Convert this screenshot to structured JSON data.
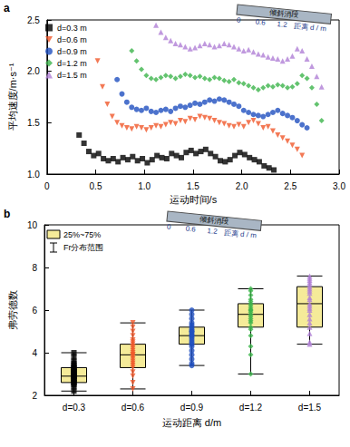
{
  "chart_data": [
    {
      "type": "scatter",
      "panel": "a",
      "x_label": "运动时间/s",
      "y_label": "平均速度/m·s⁻¹",
      "xlim": [
        0,
        3
      ],
      "xticks": [
        0,
        0.5,
        {
          "value": 1,
          "label": "1.0"
        },
        1.5,
        {
          "value": 2,
          "label": "2.0"
        },
        2.5,
        {
          "value": 3,
          "label": "3.0"
        }
      ],
      "ylim": [
        1,
        2.5
      ],
      "yticks": [
        {
          "value": 1,
          "label": "1.0"
        },
        1.5,
        {
          "value": 2,
          "label": "2.0"
        },
        2.5
      ],
      "grid": false,
      "legend": "upper left",
      "inset": {
        "label": "倾斜消段",
        "ticks": [
          0,
          0.6,
          1.2
        ],
        "axis_label": "距离 d / m"
      },
      "series": [
        {
          "name": "d=0.3 m",
          "color": "#000000",
          "marker": "square",
          "x": [
            0.33,
            0.38,
            0.43,
            0.48,
            0.53,
            0.58,
            0.63,
            0.68,
            0.73,
            0.78,
            0.83,
            0.88,
            0.93,
            0.98,
            1.03,
            1.08,
            1.13,
            1.18,
            1.23,
            1.28,
            1.33,
            1.38,
            1.43,
            1.48,
            1.53,
            1.58,
            1.63,
            1.68,
            1.73,
            1.78,
            1.83,
            1.88,
            1.93,
            1.98,
            2.03,
            2.08,
            2.13,
            2.18,
            2.23,
            2.28,
            2.33
          ],
          "values": [
            1.38,
            1.3,
            1.22,
            1.18,
            1.2,
            1.15,
            1.13,
            1.15,
            1.12,
            1.16,
            1.14,
            1.17,
            1.13,
            1.15,
            1.11,
            1.14,
            1.18,
            1.16,
            1.15,
            1.2,
            1.18,
            1.16,
            1.21,
            1.23,
            1.2,
            1.22,
            1.24,
            1.2,
            1.17,
            1.13,
            1.12,
            1.14,
            1.18,
            1.21,
            1.19,
            1.16,
            1.14,
            1.12,
            1.08,
            1.06,
            1.04
          ]
        },
        {
          "name": "d=0.6 m",
          "color": "#f0582a",
          "marker": "triangle_down",
          "x": [
            0.52,
            0.57,
            0.62,
            0.67,
            0.72,
            0.77,
            0.82,
            0.87,
            0.92,
            0.97,
            1.02,
            1.07,
            1.12,
            1.17,
            1.22,
            1.27,
            1.32,
            1.37,
            1.42,
            1.47,
            1.52,
            1.57,
            1.62,
            1.67,
            1.72,
            1.77,
            1.82,
            1.87,
            1.92,
            1.97,
            2.02,
            2.07,
            2.12,
            2.17,
            2.22,
            2.27,
            2.32,
            2.37,
            2.42,
            2.47,
            2.52,
            2.57,
            2.62
          ],
          "values": [
            2.1,
            1.85,
            1.68,
            1.56,
            1.5,
            1.47,
            1.45,
            1.44,
            1.46,
            1.45,
            1.43,
            1.45,
            1.47,
            1.46,
            1.48,
            1.5,
            1.49,
            1.52,
            1.51,
            1.54,
            1.53,
            1.56,
            1.55,
            1.54,
            1.52,
            1.5,
            1.49,
            1.47,
            1.46,
            1.48,
            1.46,
            1.5,
            1.52,
            1.49,
            1.45,
            1.46,
            1.42,
            1.38,
            1.35,
            1.32,
            1.28,
            1.24,
            1.18
          ]
        },
        {
          "name": "d=0.9 m",
          "color": "#1f4fbf",
          "marker": "circle",
          "x": [
            0.72,
            0.77,
            0.82,
            0.87,
            0.92,
            0.97,
            1.02,
            1.07,
            1.12,
            1.17,
            1.22,
            1.27,
            1.32,
            1.37,
            1.42,
            1.47,
            1.52,
            1.57,
            1.62,
            1.67,
            1.72,
            1.77,
            1.82,
            1.87,
            1.92,
            1.97,
            2.02,
            2.07,
            2.12,
            2.17,
            2.22,
            2.27,
            2.32,
            2.37,
            2.42,
            2.47,
            2.52,
            2.57,
            2.62,
            2.67
          ],
          "values": [
            1.92,
            1.78,
            1.7,
            1.65,
            1.63,
            1.62,
            1.64,
            1.61,
            1.6,
            1.62,
            1.63,
            1.61,
            1.64,
            1.66,
            1.65,
            1.67,
            1.69,
            1.68,
            1.7,
            1.72,
            1.71,
            1.73,
            1.72,
            1.7,
            1.68,
            1.66,
            1.62,
            1.6,
            1.58,
            1.57,
            1.56,
            1.58,
            1.6,
            1.62,
            1.59,
            1.57,
            1.55,
            1.52,
            1.48,
            1.45
          ]
        },
        {
          "name": "d=1.2 m",
          "color": "#3cb44b",
          "marker": "diamond",
          "x": [
            0.87,
            0.92,
            0.97,
            1.02,
            1.07,
            1.12,
            1.17,
            1.22,
            1.27,
            1.32,
            1.37,
            1.42,
            1.47,
            1.52,
            1.57,
            1.62,
            1.67,
            1.72,
            1.77,
            1.82,
            1.87,
            1.92,
            1.97,
            2.02,
            2.07,
            2.12,
            2.17,
            2.22,
            2.27,
            2.32,
            2.37,
            2.42,
            2.47,
            2.52,
            2.57,
            2.62,
            2.67,
            2.72,
            2.77,
            2.82
          ],
          "values": [
            2.2,
            2.1,
            2.02,
            1.96,
            1.93,
            1.92,
            1.94,
            1.96,
            1.95,
            1.93,
            1.95,
            1.97,
            1.96,
            1.94,
            1.95,
            1.93,
            1.92,
            1.94,
            1.93,
            1.91,
            1.9,
            1.92,
            1.89,
            1.88,
            1.86,
            1.84,
            1.82,
            1.84,
            1.86,
            1.85,
            1.87,
            1.86,
            1.84,
            1.85,
            1.88,
            1.96,
            1.93,
            1.84,
            1.68,
            1.52
          ]
        },
        {
          "name": "d=1.5 m",
          "color": "#b07fd6",
          "marker": "triangle_up",
          "x": [
            1.12,
            1.17,
            1.22,
            1.27,
            1.32,
            1.37,
            1.42,
            1.47,
            1.52,
            1.57,
            1.62,
            1.67,
            1.72,
            1.77,
            1.82,
            1.87,
            1.92,
            1.97,
            2.02,
            2.07,
            2.12,
            2.17,
            2.22,
            2.27,
            2.32,
            2.37,
            2.42,
            2.47,
            2.52,
            2.57,
            2.62,
            2.67,
            2.72,
            2.77,
            2.82
          ],
          "values": [
            2.45,
            2.38,
            2.33,
            2.3,
            2.27,
            2.26,
            2.24,
            2.22,
            2.23,
            2.25,
            2.27,
            2.26,
            2.24,
            2.25,
            2.27,
            2.26,
            2.24,
            2.22,
            2.2,
            2.21,
            2.19,
            2.17,
            2.16,
            2.14,
            2.13,
            2.12,
            2.1,
            2.12,
            2.15,
            2.22,
            2.2,
            2.12,
            2.05,
            1.95,
            1.85
          ]
        }
      ]
    },
    {
      "type": "box",
      "panel": "b",
      "x_label": "运动距离 d/m",
      "y_label": "弗劳德数",
      "categories": [
        "d=0.3",
        "d=0.6",
        "d=0.9",
        "d=1.2",
        "d=1.5"
      ],
      "ylim": [
        2,
        10
      ],
      "yticks": [
        2,
        4,
        6,
        8,
        10
      ],
      "grid": false,
      "legend": "upper left",
      "color": "#f5eb99",
      "legend_items": [
        "25%~75%",
        "Fr分布范围"
      ],
      "inset": {
        "label": "倾斜消段",
        "ticks": [
          0,
          0.6,
          1.2
        ],
        "axis_label": "距离 d / m"
      },
      "boxes": [
        {
          "low": 2.2,
          "q1": 2.6,
          "median": 2.9,
          "q3": 3.3,
          "high": 4.0,
          "color": "#000000",
          "marker": "square",
          "points": [
            2.2,
            2.4,
            2.5,
            2.6,
            2.6,
            2.7,
            2.7,
            2.8,
            2.8,
            2.9,
            2.9,
            2.9,
            3.0,
            3.0,
            3.1,
            3.1,
            3.2,
            3.2,
            3.3,
            3.3,
            3.4,
            3.5,
            3.6,
            3.8,
            4.0
          ]
        },
        {
          "low": 2.3,
          "q1": 3.3,
          "median": 3.9,
          "q3": 4.4,
          "high": 5.4,
          "color": "#f0582a",
          "marker": "triangle_down",
          "points": [
            2.3,
            2.6,
            2.9,
            3.1,
            3.3,
            3.4,
            3.5,
            3.6,
            3.7,
            3.8,
            3.9,
            3.9,
            4.0,
            4.1,
            4.2,
            4.3,
            4.4,
            4.5,
            4.6,
            4.8,
            5.0,
            5.2,
            5.4
          ]
        },
        {
          "low": 3.4,
          "q1": 4.4,
          "median": 4.8,
          "q3": 5.2,
          "high": 6.0,
          "color": "#1f4fbf",
          "marker": "circle",
          "points": [
            3.4,
            3.5,
            3.7,
            3.9,
            4.1,
            4.3,
            4.4,
            4.5,
            4.6,
            4.7,
            4.8,
            4.8,
            4.9,
            5.0,
            5.0,
            5.1,
            5.2,
            5.3,
            5.4,
            5.6,
            5.8,
            6.0
          ]
        },
        {
          "low": 3.0,
          "q1": 5.2,
          "median": 5.8,
          "q3": 6.3,
          "high": 7.0,
          "color": "#3cb44b",
          "marker": "diamond",
          "points": [
            3.0,
            3.9,
            4.3,
            4.8,
            5.1,
            5.2,
            5.4,
            5.5,
            5.6,
            5.7,
            5.8,
            5.9,
            6.0,
            6.0,
            6.1,
            6.2,
            6.3,
            6.4,
            6.5,
            6.7,
            6.9,
            7.0
          ]
        },
        {
          "low": 4.4,
          "q1": 5.2,
          "median": 6.3,
          "q3": 7.1,
          "high": 7.6,
          "color": "#b07fd6",
          "marker": "triangle_up",
          "points": [
            4.4,
            4.5,
            4.9,
            5.2,
            5.4,
            5.6,
            5.8,
            6.0,
            6.1,
            6.2,
            6.3,
            6.5,
            6.6,
            6.8,
            6.9,
            7.0,
            7.1,
            7.2,
            7.3,
            7.4,
            7.5,
            7.6
          ]
        }
      ]
    }
  ]
}
